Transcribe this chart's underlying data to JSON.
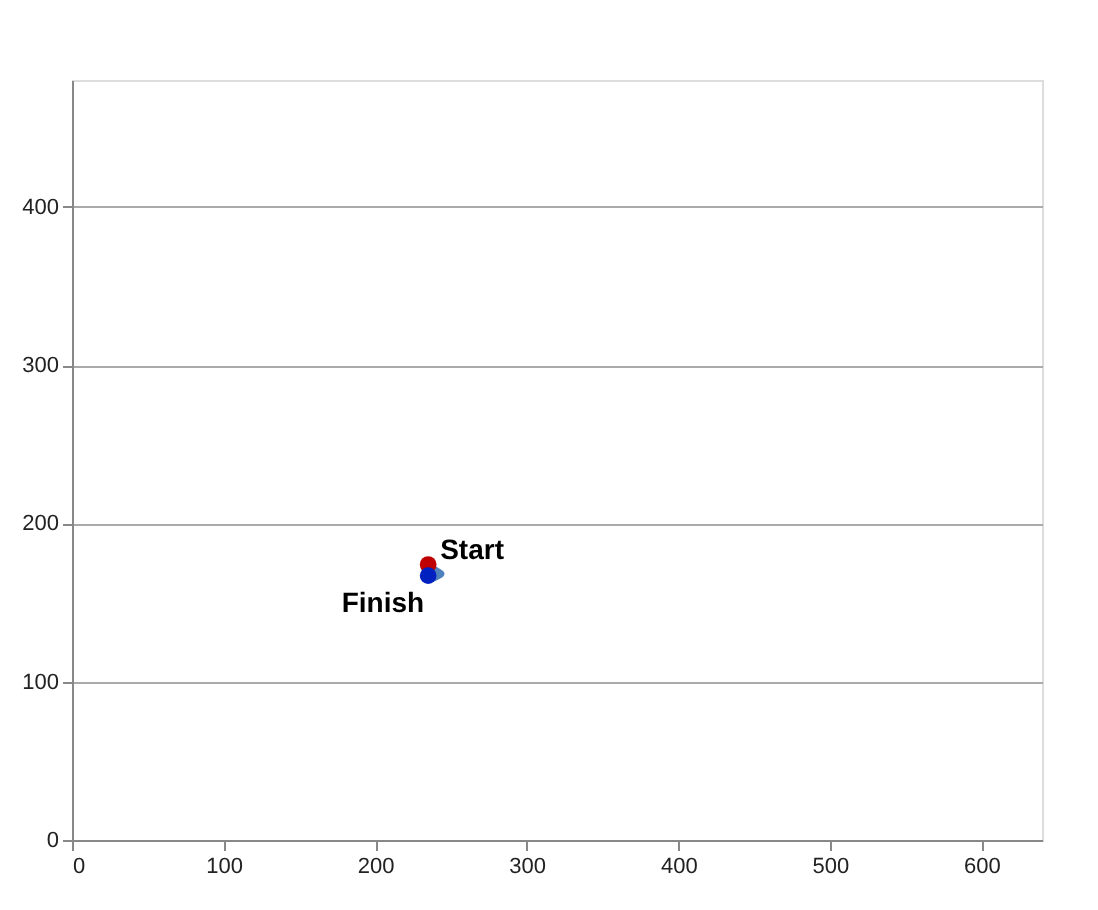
{
  "chart_data": {
    "type": "scatter",
    "series": [
      {
        "type": "line",
        "marker": "none",
        "color": "#4f81bd",
        "x": [
          233,
          238,
          243,
          239,
          234
        ],
        "values": [
          172,
          171,
          168,
          166,
          168
        ]
      },
      {
        "color": "#c00000",
        "x": [
          235
        ],
        "values": [
          174
        ]
      },
      {
        "color": "#0020c0",
        "x": [
          235
        ],
        "values": [
          167
        ]
      }
    ],
    "annotations": [
      {
        "text": "Start",
        "x": 235,
        "y": 174
      },
      {
        "text": "Finish",
        "x": 235,
        "y": 167
      }
    ],
    "xlim": [
      0,
      640
    ],
    "ylim": [
      0,
      480
    ],
    "xticks": [
      0,
      100,
      200,
      300,
      400,
      500,
      600
    ],
    "yticks": [
      0,
      100,
      200,
      300,
      400
    ],
    "grid": "y",
    "marker": "circle"
  }
}
